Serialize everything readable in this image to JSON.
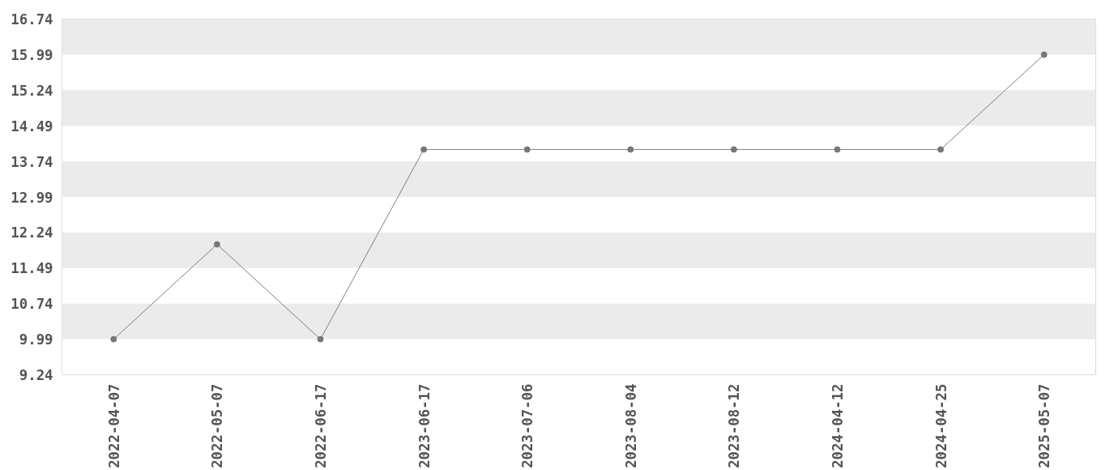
{
  "chart_data": {
    "type": "line",
    "categories": [
      "2022-04-07",
      "2022-05-07",
      "2022-06-17",
      "2023-06-17",
      "2023-07-06",
      "2023-08-04",
      "2023-08-12",
      "2024-04-12",
      "2024-04-25",
      "2025-05-07"
    ],
    "series": [
      {
        "color": "#808080",
        "values": [
          9.99,
          11.99,
          9.99,
          13.99,
          13.99,
          13.99,
          13.99,
          13.99,
          13.99,
          15.99
        ]
      }
    ],
    "ylim": [
      9.24,
      16.74
    ],
    "yticks": [
      9.24,
      9.99,
      10.74,
      11.49,
      12.24,
      12.99,
      13.74,
      14.49,
      15.24,
      15.99,
      16.74
    ],
    "bands": [
      {
        "axis": "y",
        "from": 9.99,
        "to": 10.74,
        "color": "#ebebeb"
      },
      {
        "axis": "y",
        "from": 11.49,
        "to": 12.24,
        "color": "#ebebeb"
      },
      {
        "axis": "y",
        "from": 12.99,
        "to": 13.74,
        "color": "#ebebeb"
      },
      {
        "axis": "y",
        "from": 14.49,
        "to": 15.24,
        "color": "#ebebeb"
      },
      {
        "axis": "y",
        "from": 15.99,
        "to": 16.74,
        "color": "#ebebeb"
      }
    ],
    "grid": false,
    "marker": "circle",
    "line_style": "solid"
  }
}
